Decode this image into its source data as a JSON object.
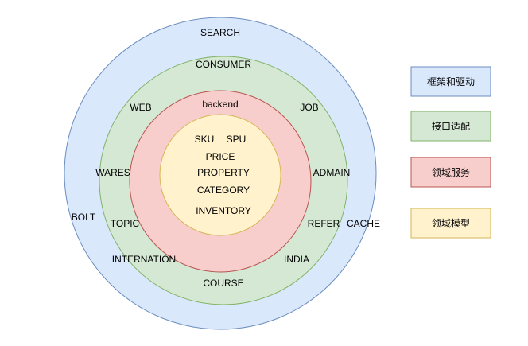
{
  "colors": {
    "framework_fill": "#dae8fc",
    "framework_stroke": "#6c8ebf",
    "adapter_fill": "#d5e8d4",
    "adapter_stroke": "#82b366",
    "service_fill": "#f8cecc",
    "service_stroke": "#b85450",
    "model_fill": "#fff2cc",
    "model_stroke": "#d6b656",
    "text": "#000000"
  },
  "rings": {
    "framework": {
      "labels": [
        "SEARCH",
        "BOLT",
        "CACHE"
      ]
    },
    "adapter": {
      "labels": [
        "CONSUMER",
        "WEB",
        "JOB",
        "WARES",
        "ADMAIN",
        "TOPIC",
        "REFER",
        "INTERNATION",
        "INDIA",
        "COURSE"
      ]
    },
    "service": {
      "labels": [
        "backend"
      ]
    },
    "model": {
      "labels": [
        "SKU",
        "SPU",
        "PRICE",
        "PROPERTY",
        "CATEGORY",
        "INVENTORY"
      ]
    }
  },
  "legend": [
    {
      "label": "框架和驱动",
      "layer": "framework"
    },
    {
      "label": "接口适配",
      "layer": "adapter"
    },
    {
      "label": "领域服务",
      "layer": "service"
    },
    {
      "label": "领域模型",
      "layer": "model"
    }
  ]
}
